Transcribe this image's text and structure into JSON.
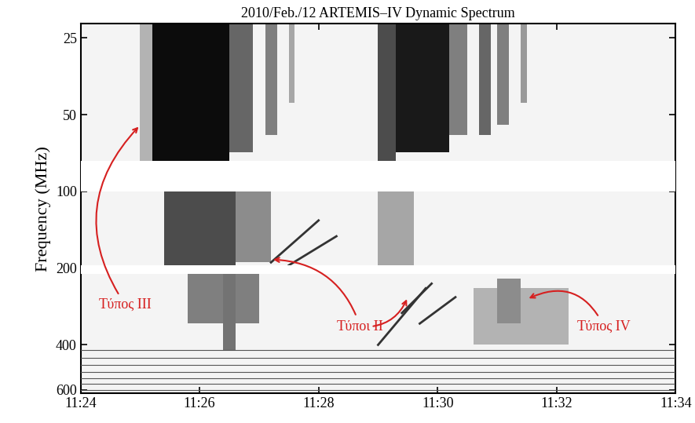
{
  "chart_data": {
    "type": "spectrogram",
    "title": "2010/Feb./12 ARTEMIS–IV Dynamic Spectrum",
    "y_label": "Frequency (MHz)",
    "log": "y",
    "xlim": [
      684,
      694
    ],
    "xticks": [
      {
        "value": 684,
        "label": "11:24"
      },
      {
        "value": 686,
        "label": "11:26"
      },
      {
        "value": 688,
        "label": "11:28"
      },
      {
        "value": 690,
        "label": "11:30"
      },
      {
        "value": 692,
        "label": "11:32"
      },
      {
        "value": 694,
        "label": "11:34"
      }
    ],
    "ylim": [
      620,
      22
    ],
    "yticks": [
      25,
      50,
      100,
      200,
      400,
      600
    ],
    "emission_bands": [
      {
        "t": [
          685.0,
          685.2
        ],
        "f": [
          22,
          80
        ],
        "level": 0.3
      },
      {
        "t": [
          685.2,
          686.5
        ],
        "f": [
          22,
          80
        ],
        "level": 0.95
      },
      {
        "t": [
          686.5,
          686.9
        ],
        "f": [
          22,
          70
        ],
        "level": 0.6
      },
      {
        "t": [
          687.1,
          687.3
        ],
        "f": [
          22,
          60
        ],
        "level": 0.5
      },
      {
        "t": [
          687.5,
          687.6
        ],
        "f": [
          22,
          45
        ],
        "level": 0.35
      },
      {
        "t": [
          685.4,
          686.6
        ],
        "f": [
          100,
          195
        ],
        "level": 0.7
      },
      {
        "t": [
          686.6,
          687.2
        ],
        "f": [
          100,
          190
        ],
        "level": 0.45
      },
      {
        "t": [
          685.8,
          687.0
        ],
        "f": [
          210,
          330
        ],
        "level": 0.5
      },
      {
        "t": [
          686.4,
          686.6
        ],
        "f": [
          210,
          420
        ],
        "level": 0.55
      },
      {
        "t": [
          689.0,
          689.3
        ],
        "f": [
          22,
          80
        ],
        "level": 0.7
      },
      {
        "t": [
          689.3,
          690.2
        ],
        "f": [
          22,
          70
        ],
        "level": 0.9
      },
      {
        "t": [
          690.2,
          690.5
        ],
        "f": [
          22,
          60
        ],
        "level": 0.5
      },
      {
        "t": [
          690.7,
          690.9
        ],
        "f": [
          22,
          60
        ],
        "level": 0.6
      },
      {
        "t": [
          691.0,
          691.2
        ],
        "f": [
          22,
          55
        ],
        "level": 0.5
      },
      {
        "t": [
          691.4,
          691.5
        ],
        "f": [
          22,
          45
        ],
        "level": 0.4
      },
      {
        "t": [
          689.0,
          689.6
        ],
        "f": [
          100,
          195
        ],
        "level": 0.35
      },
      {
        "t": [
          690.6,
          692.2
        ],
        "f": [
          240,
          400
        ],
        "level": 0.3
      },
      {
        "t": [
          691.0,
          691.4
        ],
        "f": [
          220,
          330
        ],
        "level": 0.45
      }
    ],
    "drift_lanes": [
      {
        "t": [
          687.2,
          688.0
        ],
        "f": [
          190,
          130
        ]
      },
      {
        "t": [
          687.5,
          688.3
        ],
        "f": [
          195,
          150
        ]
      },
      {
        "t": [
          689.0,
          689.8
        ],
        "f": [
          400,
          240
        ]
      },
      {
        "t": [
          689.4,
          689.9
        ],
        "f": [
          300,
          230
        ]
      },
      {
        "t": [
          689.7,
          690.3
        ],
        "f": [
          330,
          260
        ]
      }
    ],
    "data_gaps": [
      {
        "f": [
          76,
          100
        ]
      },
      {
        "f": [
          195,
          210
        ]
      }
    ],
    "interference_lines": [
      420,
      450,
      480,
      510,
      540,
      570,
      600
    ],
    "annotations": [
      {
        "text": "Τύπος III",
        "targets": [
          [
            685.0,
            55
          ]
        ]
      },
      {
        "text": "Τύποι II",
        "targets": [
          [
            687.2,
            185
          ],
          [
            689.5,
            260
          ]
        ]
      },
      {
        "text": "Τύπος IV",
        "targets": [
          [
            691.5,
            265
          ]
        ]
      }
    ]
  }
}
